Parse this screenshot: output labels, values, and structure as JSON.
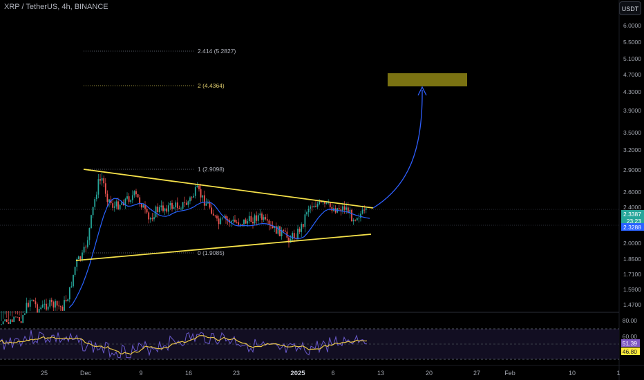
{
  "header": {
    "symbol_title": "XRP / TetherUS, 4h, BINANCE",
    "currency_button": "USDT"
  },
  "price_axis": {
    "labels": [
      "6.0000",
      "5.5000",
      "5.1000",
      "4.7000",
      "4.3000",
      "3.9000",
      "3.5000",
      "3.2000",
      "2.9000",
      "2.6000",
      "2.4000",
      "2.0000",
      "1.8500",
      "1.7100",
      "1.5900",
      "1.4700"
    ],
    "price_badge_1": "2.3387",
    "price_badge_2": "23:23",
    "price_badge_3": "2.3288"
  },
  "oscillator_axis": {
    "labels": [
      "80.00",
      "60.00"
    ],
    "badge_1": "51.39",
    "badge_2": "46.80"
  },
  "time_axis": {
    "labels": [
      "25",
      "Dec",
      "9",
      "16",
      "23",
      "2025",
      "6",
      "13",
      "20",
      "27",
      "Feb",
      "10",
      "1"
    ]
  },
  "fibonacci": {
    "level_2414": "2.414 (5.2827)",
    "level_2": "2 (4.4364)",
    "level_1": "1 (2.9098)",
    "level_0": "0 (1.9085)"
  },
  "colors": {
    "background": "#000000",
    "candle_up": "#26a69a",
    "candle_down": "#ef5350",
    "moving_average": "#2962ff",
    "trendline": "#f5e14a",
    "target_box": "#7a7212",
    "projection_arrow": "#2f5fff",
    "oscillator_main": "#6a5acd",
    "oscillator_signal": "#e8c547",
    "price_badge_green": "#26a69a",
    "price_badge_blue": "#2962ff",
    "osc_badge_purple": "#7e57c2",
    "osc_badge_yellow": "#ffeb3b"
  },
  "icons": {
    "projection": "curved-arrow-up-icon"
  }
}
